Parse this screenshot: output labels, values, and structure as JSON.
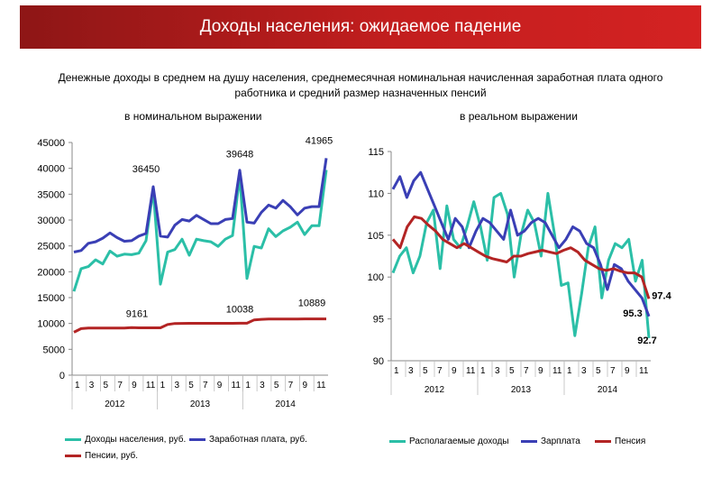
{
  "header": {
    "title": "Доходы населения: ожидаемое падение"
  },
  "subtitle": "Денежные доходы в среднем на душу населения, среднемесячная номинальная начисленная заработная плата одного работника и средний размер назначенных пенсий",
  "colors": {
    "income": "#2bbfa7",
    "wage": "#3a3fb5",
    "pension": "#b32424",
    "banner": "#b21c1c"
  },
  "chart_data": [
    {
      "type": "line",
      "title": "в номинальном выражении",
      "x_tick_labels": [
        "1",
        "3",
        "5",
        "7",
        "9",
        "11",
        "1",
        "3",
        "5",
        "7",
        "9",
        "11",
        "1",
        "3",
        "5",
        "7",
        "9",
        "11"
      ],
      "year_labels": [
        "2012",
        "2013",
        "2014"
      ],
      "ylim": [
        0,
        45000
      ],
      "yticks": [
        0,
        5000,
        10000,
        15000,
        20000,
        25000,
        30000,
        35000,
        40000,
        45000
      ],
      "ytick_labels": [
        "0",
        "5000",
        "10000",
        "15000",
        "20000",
        "25000",
        "30000",
        "35000",
        "40000",
        "45000"
      ],
      "series": [
        {
          "name": "Доходы населения, руб.",
          "color": "#2bbfa7",
          "values": [
            16200,
            20600,
            21000,
            22300,
            21500,
            24000,
            23000,
            23400,
            23300,
            23600,
            26000,
            35800,
            17600,
            23800,
            24300,
            26300,
            23200,
            26300,
            26000,
            25800,
            24900,
            26300,
            27000,
            38600,
            18700,
            24900,
            24600,
            28300,
            26800,
            27900,
            28600,
            29600,
            27200,
            28900,
            28900,
            39700
          ]
        },
        {
          "name": "Заработная плата, руб.",
          "color": "#3a3fb5",
          "values": [
            23800,
            24100,
            25500,
            25800,
            26500,
            27500,
            26600,
            25900,
            26000,
            26900,
            27400,
            36450,
            26900,
            26700,
            29000,
            30100,
            29800,
            30900,
            30100,
            29300,
            29300,
            30100,
            30300,
            39648,
            29600,
            29400,
            31500,
            32900,
            32300,
            33800,
            32600,
            31000,
            32300,
            32600,
            32600,
            41965
          ]
        },
        {
          "name": "Пенсии, руб.",
          "color": "#b32424",
          "values": [
            8300,
            9000,
            9100,
            9100,
            9100,
            9100,
            9100,
            9100,
            9200,
            9150,
            9161,
            9161,
            9161,
            9800,
            10000,
            10020,
            10030,
            10030,
            10030,
            10030,
            10035,
            10035,
            10035,
            10038,
            10038,
            10700,
            10800,
            10850,
            10860,
            10860,
            10870,
            10870,
            10880,
            10880,
            10889,
            10889
          ]
        }
      ],
      "annotations": [
        {
          "text": "41965",
          "series": 1,
          "index": 35
        },
        {
          "text": "39648",
          "series": 1,
          "index": 23
        },
        {
          "text": "36450",
          "series": 1,
          "index": 11
        },
        {
          "text": "9161",
          "series": 2,
          "index": 10
        },
        {
          "text": "10038",
          "series": 2,
          "index": 23
        },
        {
          "text": "10889",
          "series": 2,
          "index": 34
        }
      ]
    },
    {
      "type": "line",
      "title": "в реальном выражении",
      "x_tick_labels": [
        "1",
        "3",
        "5",
        "7",
        "9",
        "11",
        "1",
        "3",
        "5",
        "7",
        "9",
        "11",
        "1",
        "3",
        "5",
        "7",
        "9",
        "11"
      ],
      "year_labels": [
        "2012",
        "2013",
        "2014"
      ],
      "ylim": [
        90,
        115
      ],
      "yticks": [
        90,
        95,
        100,
        105,
        110,
        115
      ],
      "ytick_labels": [
        "90",
        "95",
        "100",
        "105",
        "110",
        "115"
      ],
      "series": [
        {
          "name": "Располагаемые доходы",
          "color": "#2bbfa7",
          "values": [
            100.5,
            102.5,
            103.5,
            100.5,
            102.5,
            106.5,
            108,
            101,
            108.5,
            104.5,
            103.5,
            106,
            109,
            106,
            102,
            109.5,
            110,
            107.5,
            100,
            105,
            108,
            106.5,
            102.5,
            110,
            105,
            99,
            99.3,
            93,
            98,
            103.5,
            106,
            97.5,
            102,
            104,
            103.5,
            104.5,
            99.5,
            102,
            92.7
          ]
        },
        {
          "name": "Зарплата",
          "color": "#3a3fb5",
          "values": [
            110.5,
            112,
            109.5,
            111.5,
            112.5,
            110.5,
            108.5,
            106.5,
            104.5,
            107,
            106,
            103.5,
            105.5,
            107,
            106.5,
            105.5,
            104.5,
            108,
            105,
            105.5,
            106.5,
            107,
            106.5,
            105,
            103.5,
            104.5,
            106,
            105.5,
            104,
            103.5,
            101.5,
            98.5,
            101.5,
            101,
            99.5,
            98.5,
            97.5,
            95.3
          ]
        },
        {
          "name": "Пенсия",
          "color": "#b32424",
          "values": [
            104.5,
            103.5,
            106,
            107.2,
            107,
            106.2,
            105.5,
            104.5,
            104,
            103.5,
            104,
            103.5,
            103,
            102.5,
            102.2,
            102,
            101.8,
            102.5,
            102.5,
            102.8,
            103,
            103.2,
            103,
            102.8,
            103.2,
            103.5,
            103,
            102,
            101.5,
            101,
            100.8,
            101,
            100.7,
            100.5,
            100.5,
            100,
            97.4
          ]
        }
      ],
      "annotations": [
        {
          "text": "97.4",
          "series": 2,
          "index": 36
        },
        {
          "text": "95.3",
          "series": 1,
          "index": 37
        },
        {
          "text": "92.7",
          "series": 0,
          "index": 38
        }
      ]
    }
  ]
}
